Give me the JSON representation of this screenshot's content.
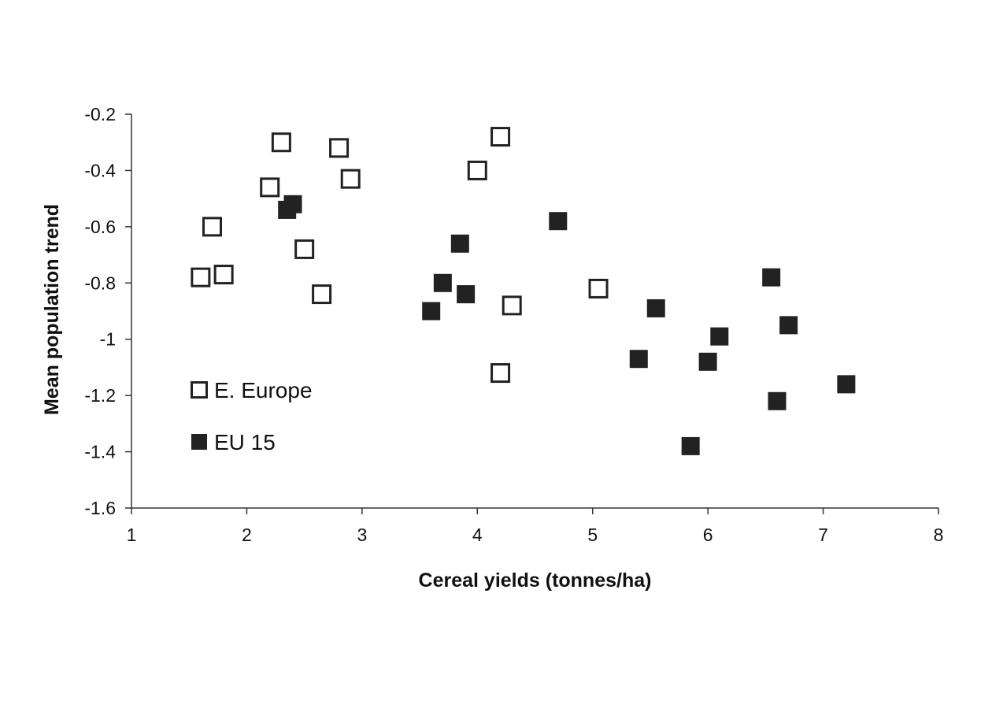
{
  "chart_data": {
    "type": "scatter",
    "title": "",
    "xlabel": "Cereal yields (tonnes/ha)",
    "ylabel": "Mean population trend",
    "xlim": [
      1,
      8
    ],
    "ylim": [
      -1.6,
      -0.2
    ],
    "xticks": [
      1,
      2,
      3,
      4,
      5,
      6,
      7,
      8
    ],
    "yticks": [
      -1.6,
      -1.4,
      -1.2,
      -1,
      -0.8,
      -0.6,
      -0.4,
      -0.2
    ],
    "xtick_labels": [
      "1",
      "2",
      "3",
      "4",
      "5",
      "6",
      "7",
      "8"
    ],
    "ytick_labels": [
      "-1.6",
      "-1.4",
      "-1.2",
      "-1",
      "-0.8",
      "-0.6",
      "-0.4",
      "-0.2"
    ],
    "grid": false,
    "legend_position": "left",
    "series": [
      {
        "name": "E. Europe",
        "marker": "open-square",
        "color": "#222222",
        "points": [
          {
            "x": 1.6,
            "y": -0.78
          },
          {
            "x": 1.7,
            "y": -0.6
          },
          {
            "x": 1.8,
            "y": -0.77
          },
          {
            "x": 2.2,
            "y": -0.46
          },
          {
            "x": 2.3,
            "y": -0.3
          },
          {
            "x": 2.5,
            "y": -0.68
          },
          {
            "x": 2.65,
            "y": -0.84
          },
          {
            "x": 2.8,
            "y": -0.32
          },
          {
            "x": 2.9,
            "y": -0.43
          },
          {
            "x": 4.0,
            "y": -0.4
          },
          {
            "x": 4.2,
            "y": -0.28
          },
          {
            "x": 4.3,
            "y": -0.88
          },
          {
            "x": 4.2,
            "y": -1.12
          },
          {
            "x": 5.05,
            "y": -0.82
          }
        ]
      },
      {
        "name": "EU 15",
        "marker": "filled-square",
        "color": "#222222",
        "points": [
          {
            "x": 2.35,
            "y": -0.54
          },
          {
            "x": 2.4,
            "y": -0.52
          },
          {
            "x": 3.6,
            "y": -0.9
          },
          {
            "x": 3.7,
            "y": -0.8
          },
          {
            "x": 3.85,
            "y": -0.66
          },
          {
            "x": 3.9,
            "y": -0.84
          },
          {
            "x": 4.7,
            "y": -0.58
          },
          {
            "x": 5.4,
            "y": -1.07
          },
          {
            "x": 5.55,
            "y": -0.89
          },
          {
            "x": 5.85,
            "y": -1.38
          },
          {
            "x": 6.0,
            "y": -1.08
          },
          {
            "x": 6.1,
            "y": -0.99
          },
          {
            "x": 6.55,
            "y": -0.78
          },
          {
            "x": 6.6,
            "y": -1.22
          },
          {
            "x": 6.7,
            "y": -0.95
          },
          {
            "x": 7.2,
            "y": -1.16
          }
        ]
      }
    ]
  }
}
